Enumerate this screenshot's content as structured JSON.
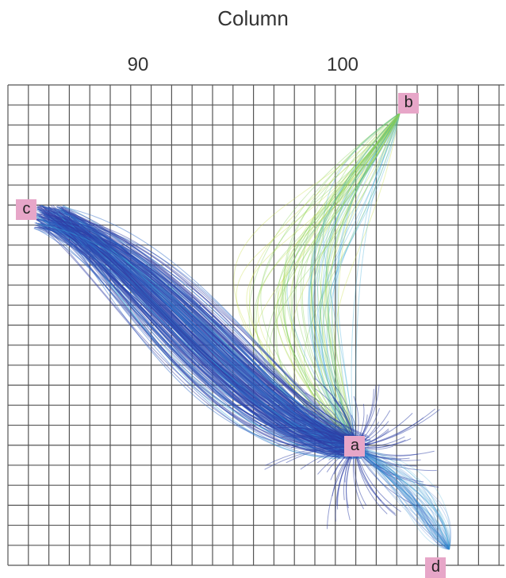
{
  "axis": {
    "title": "Column",
    "ticks": [
      {
        "label": "90",
        "value": 90
      },
      {
        "label": "100",
        "value": 100
      }
    ]
  },
  "points": [
    {
      "label": "a",
      "col": 100.6,
      "row": 17.7
    },
    {
      "label": "b",
      "col": 102.8,
      "row": 1.0
    },
    {
      "label": "c",
      "col": 84.9,
      "row": 6.2
    },
    {
      "label": "d",
      "col": 105.6,
      "row": 23.6
    }
  ],
  "grid": {
    "cols_visible": [
      84.0,
      108.5
    ],
    "rows_visible": [
      0,
      24
    ]
  },
  "colors": {
    "dark_blue": "#2e3fa6",
    "blue": "#2e6bc8",
    "cyan": "#39a9d6",
    "green": "#7fcf4a",
    "yellow_green": "#c7dd3c",
    "grid": "#555555",
    "label_bg": "#e7a6c8"
  }
}
